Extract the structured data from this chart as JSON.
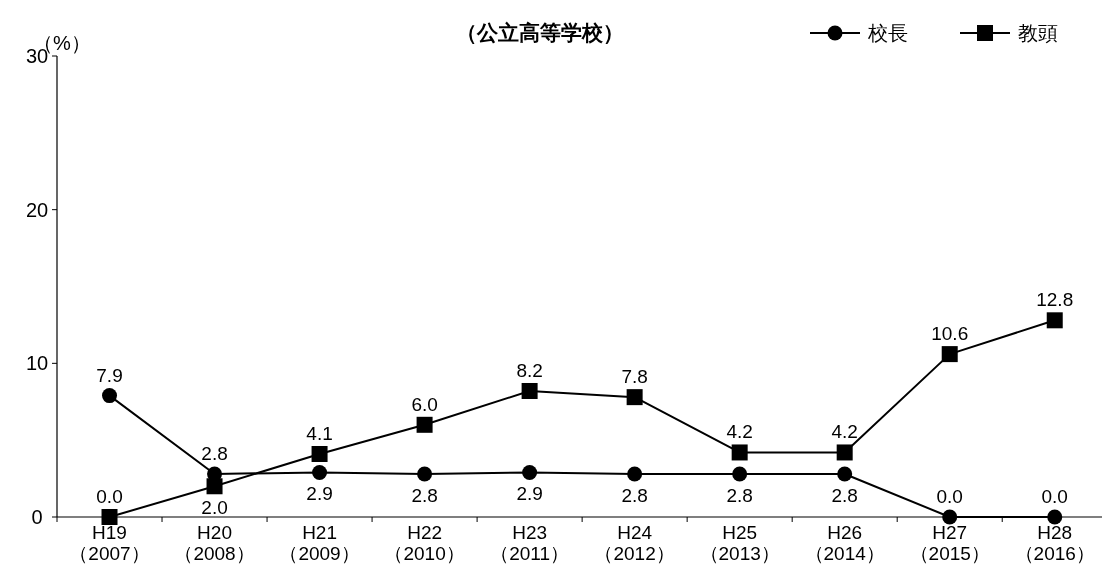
{
  "chart_data": {
    "type": "line",
    "title": "（公立高等学校）",
    "ylabel": "（%）",
    "categories": [
      "H19\n（2007）",
      "H20\n（2008）",
      "H21\n（2009）",
      "H22\n（2010）",
      "H23\n（2011）",
      "H24\n（2012）",
      "H25\n（2013）",
      "H26\n（2014）",
      "H27\n（2015）",
      "H28\n（2016）"
    ],
    "series": [
      {
        "name": "校長",
        "color": "#000000",
        "marker": "circle",
        "values": [
          7.9,
          2.8,
          2.9,
          2.8,
          2.9,
          2.8,
          2.8,
          2.8,
          0.0,
          0.0
        ],
        "value_labels": [
          "7.9",
          "2.8",
          "2.9",
          "2.8",
          "2.9",
          "2.8",
          "2.8",
          "2.8",
          "0.0",
          "0.0"
        ]
      },
      {
        "name": "教頭",
        "color": "#000000",
        "marker": "square",
        "values": [
          0.0,
          2.0,
          4.1,
          6.0,
          8.2,
          7.8,
          4.2,
          4.2,
          10.6,
          12.8
        ],
        "value_labels": [
          "0.0",
          "2.0",
          "4.1",
          "6.0",
          "8.2",
          "7.8",
          "4.2",
          "4.2",
          "10.6",
          "12.8"
        ]
      }
    ],
    "ylim": [
      0,
      30
    ],
    "yticks": [
      0,
      10,
      20,
      30
    ],
    "legend": "top right",
    "line_style": "solid"
  }
}
